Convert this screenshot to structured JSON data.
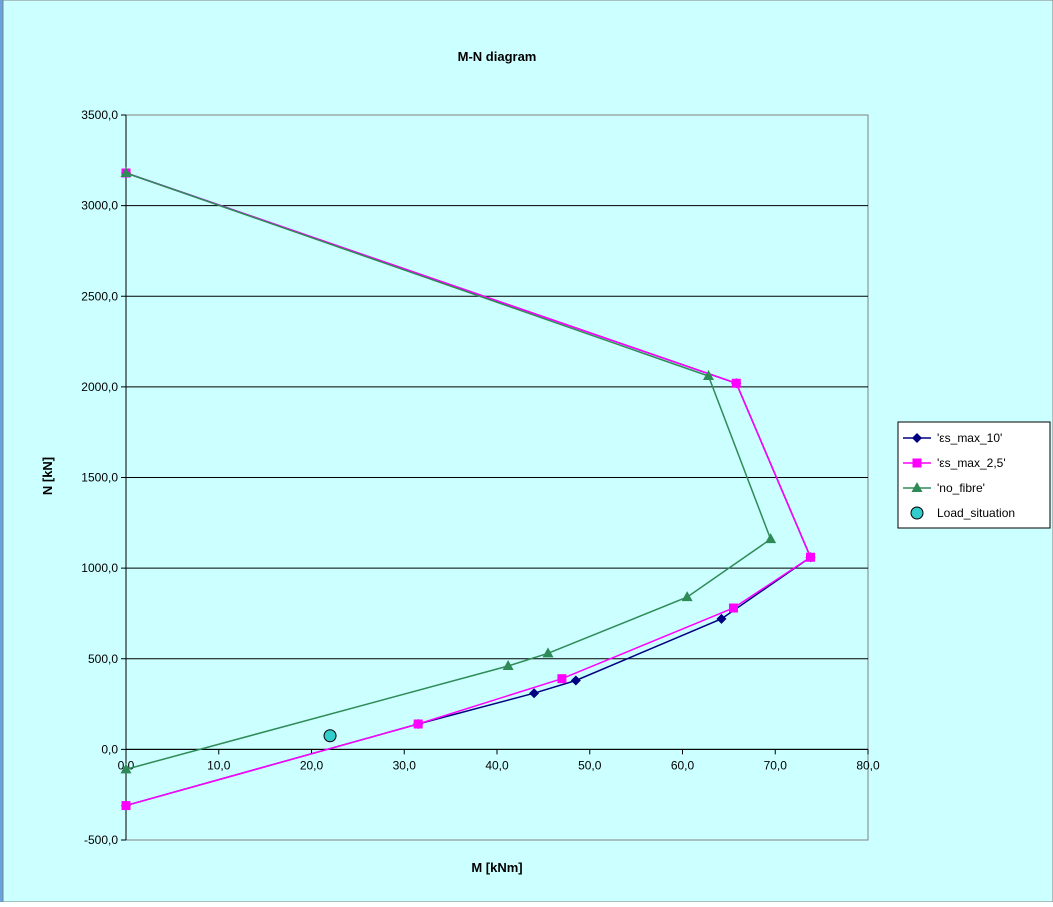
{
  "chart_data": {
    "type": "scatter",
    "title": "M-N diagram",
    "xlabel": "M [kNm]",
    "ylabel": "N [kN]",
    "xlim": [
      0,
      80
    ],
    "ylim": [
      -500,
      3500
    ],
    "x_ticks": [
      0,
      10,
      20,
      30,
      40,
      50,
      60,
      70,
      80
    ],
    "y_ticks": [
      -500,
      0,
      500,
      1000,
      1500,
      2000,
      2500,
      3000,
      3500
    ],
    "x_tick_labels": [
      "0,0",
      "10,0",
      "20,0",
      "30,0",
      "40,0",
      "50,0",
      "60,0",
      "70,0",
      "80,0"
    ],
    "y_tick_labels": [
      "-500,0",
      "0,0",
      "500,0",
      "1000,0",
      "1500,0",
      "2000,0",
      "2500,0",
      "3000,0",
      "3500,0"
    ],
    "grid": "horizontal",
    "legend_position": "right",
    "series": [
      {
        "name": "'εs_max_10'",
        "color": "#000080",
        "marker": "diamond",
        "points": [
          [
            0,
            -310
          ],
          [
            31.5,
            140
          ],
          [
            44,
            310
          ],
          [
            48.5,
            380
          ],
          [
            64.2,
            720
          ],
          [
            73.8,
            1060
          ],
          [
            65.8,
            2020
          ],
          [
            0,
            3180
          ]
        ]
      },
      {
        "name": "'εs_max_2,5'",
        "color": "#ff00ff",
        "marker": "square",
        "points": [
          [
            0,
            -310
          ],
          [
            31.5,
            140
          ],
          [
            47,
            390
          ],
          [
            65.5,
            780
          ],
          [
            73.8,
            1060
          ],
          [
            65.8,
            2020
          ],
          [
            0,
            3180
          ]
        ]
      },
      {
        "name": "'no_fibre'",
        "color": "#2e8b57",
        "marker": "triangle",
        "points": [
          [
            0,
            -110
          ],
          [
            41.2,
            460
          ],
          [
            45.5,
            530
          ],
          [
            60.5,
            840
          ],
          [
            69.5,
            1160
          ],
          [
            62.8,
            2060
          ],
          [
            0,
            3180
          ]
        ]
      },
      {
        "name": "Load_situation",
        "color": "#33cccc",
        "marker": "circle",
        "points": [
          [
            22,
            75
          ]
        ]
      }
    ]
  }
}
